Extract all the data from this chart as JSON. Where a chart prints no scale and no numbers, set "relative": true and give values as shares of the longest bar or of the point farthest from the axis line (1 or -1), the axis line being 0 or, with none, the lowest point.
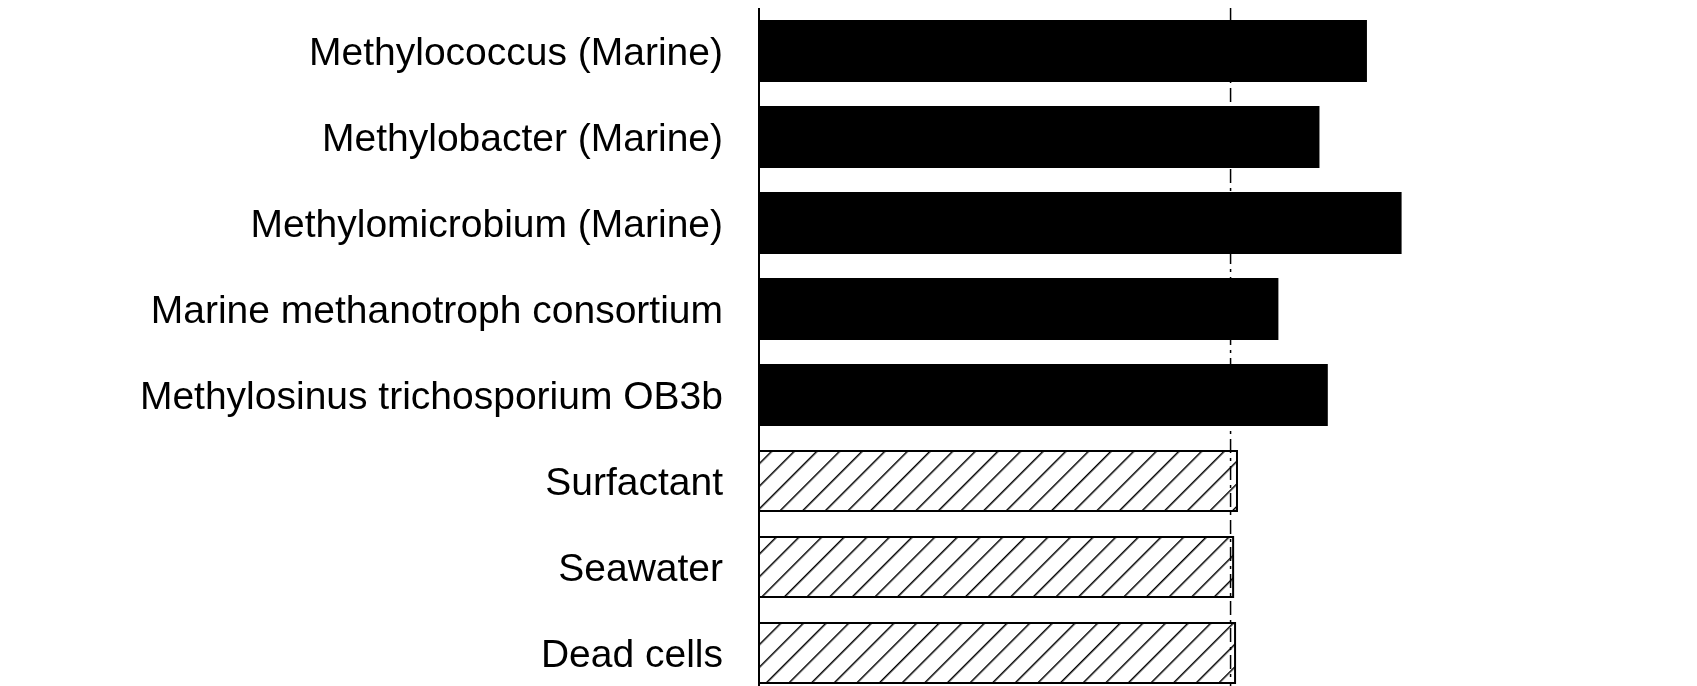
{
  "chart_data": {
    "type": "bar",
    "orientation": "horizontal",
    "relative": true,
    "categories": [
      "Methylococcus (Marine)",
      "Methylobacter (Marine)",
      "Methylomicrobium (Marine)",
      "Marine methanotroph consortium",
      "Methylosinus trichosporium OB3b",
      "Surfactant",
      "Seawater",
      "Dead cells"
    ],
    "values": [
      0.946,
      0.872,
      1,
      0.808,
      0.885,
      0.745,
      0.739,
      0.742
    ],
    "colors": [
      "#000000",
      "#000000",
      "#000000",
      "#000000",
      "#000000",
      "#ffffff",
      "#ffffff",
      "#ffffff"
    ],
    "ref_lines": [
      {
        "axis": "x",
        "value": 0.735,
        "line_style": "dashed",
        "color": "#000000"
      }
    ],
    "grid": false,
    "legend": false
  }
}
